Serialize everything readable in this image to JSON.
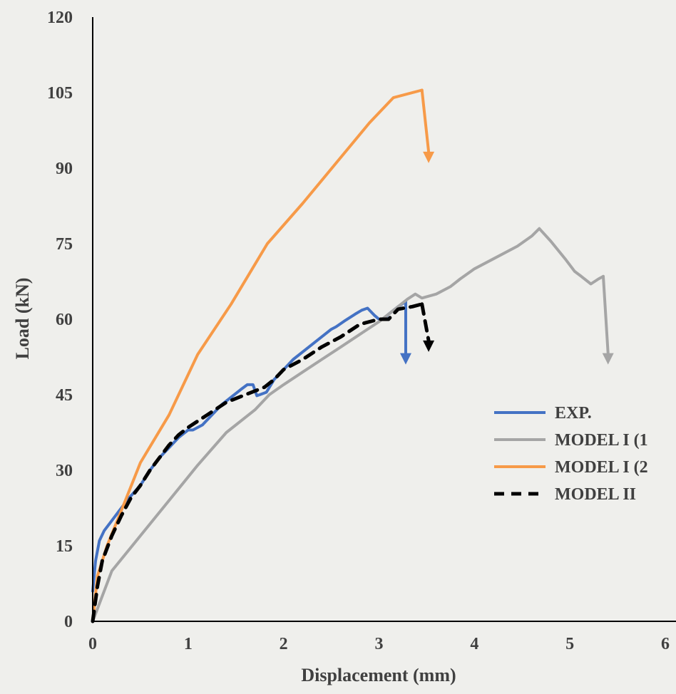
{
  "chart_data": {
    "type": "line",
    "xlabel": "Displacement (mm)",
    "ylabel": "Load (kN)",
    "xlim": [
      0,
      6
    ],
    "ylim": [
      0,
      120
    ],
    "x_ticks": [
      "0",
      "1",
      "2",
      "3",
      "4",
      "5",
      "6"
    ],
    "y_ticks": [
      "0",
      "15",
      "30",
      "45",
      "60",
      "75",
      "90",
      "105",
      "120"
    ],
    "grid": false,
    "legend_position": "right",
    "series": [
      {
        "name": "EXP.",
        "color": "#4472c4",
        "style": "solid",
        "x": [
          0,
          0.03,
          0.07,
          0.12,
          0.2,
          0.28,
          0.38,
          0.5,
          0.6,
          0.7,
          0.8,
          0.9,
          1.0,
          1.05,
          1.15,
          1.25,
          1.35,
          1.45,
          1.55,
          1.62,
          1.68,
          1.72,
          1.75,
          1.82,
          1.9,
          2.0,
          2.1,
          2.2,
          2.3,
          2.4,
          2.5,
          2.55,
          2.65,
          2.75,
          2.82,
          2.88,
          2.95,
          3.0,
          3.05,
          3.1,
          3.2,
          3.28
        ],
        "y": [
          6,
          12,
          16,
          18,
          20,
          22,
          24.5,
          27,
          30,
          32.5,
          34.5,
          36.5,
          38,
          38,
          39,
          41,
          43,
          44.5,
          46,
          47,
          47,
          44.8,
          45,
          45.5,
          48,
          50,
          52,
          53.5,
          55,
          56.5,
          58,
          58.5,
          59.8,
          61,
          61.8,
          62.2,
          60.8,
          60,
          60,
          61,
          62.5,
          63.5
        ],
        "drop": {
          "x": 3.28,
          "y_to": 51
        }
      },
      {
        "name": "MODEL I (1",
        "color": "#a5a5a5",
        "style": "solid",
        "x": [
          0,
          0.2,
          0.5,
          0.8,
          1.1,
          1.4,
          1.7,
          1.85,
          2.0,
          2.2,
          2.4,
          2.6,
          2.8,
          3.0,
          3.2,
          3.3,
          3.38,
          3.45,
          3.6,
          3.75,
          3.85,
          4.0,
          4.2,
          4.45,
          4.6,
          4.68,
          4.8,
          4.95,
          5.05,
          5.12,
          5.22,
          5.3,
          5.35
        ],
        "y": [
          0,
          10,
          17,
          24,
          31,
          37.5,
          42,
          45,
          47,
          49.5,
          52,
          54.5,
          57,
          59.5,
          62.5,
          64,
          65,
          64.2,
          65,
          66.5,
          68,
          70,
          72,
          74.5,
          76.5,
          78,
          75.5,
          72,
          69.5,
          68.5,
          67,
          68,
          68.5
        ],
        "drop": {
          "x": 5.4,
          "y_to": 51
        }
      },
      {
        "name": "MODEL I (2",
        "color": "#f79a48",
        "style": "solid",
        "x": [
          0,
          0.05,
          0.15,
          0.3,
          0.5,
          0.8,
          1.1,
          1.45,
          1.83,
          2.2,
          2.55,
          2.9,
          3.15,
          3.45
        ],
        "y": [
          0,
          9,
          15,
          22,
          31.5,
          41,
          53,
          63,
          75,
          83,
          91,
          99,
          104,
          105.5
        ],
        "drop": {
          "x": 3.52,
          "y_to": 91
        }
      },
      {
        "name": "MODEL II",
        "color": "#000000",
        "style": "dashed",
        "x": [
          0,
          0.05,
          0.1,
          0.2,
          0.3,
          0.4,
          0.5,
          0.6,
          0.7,
          0.8,
          0.9,
          1.0,
          1.2,
          1.4,
          1.6,
          1.8,
          1.9,
          2.0,
          2.2,
          2.4,
          2.6,
          2.8,
          3.0,
          3.1,
          3.2,
          3.35,
          3.45
        ],
        "y": [
          0,
          7,
          12,
          17,
          21,
          24.5,
          27,
          30,
          32.5,
          35,
          37,
          38.5,
          41,
          43.5,
          45,
          46.5,
          48,
          50,
          52,
          54.5,
          56.5,
          59,
          60,
          60,
          62,
          62.5,
          63
        ],
        "drop": {
          "x": 3.52,
          "y_to": 53.5
        }
      }
    ]
  }
}
